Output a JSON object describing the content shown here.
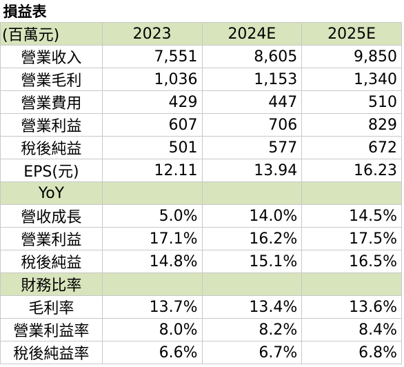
{
  "title": "損益表",
  "header": {
    "unit_label": "(百萬元)",
    "years": [
      "2023",
      "2024E",
      "2025E"
    ]
  },
  "income_rows": [
    {
      "label": "營業收入",
      "values": [
        "7,551",
        "8,605",
        "9,850"
      ]
    },
    {
      "label": "營業毛利",
      "values": [
        "1,036",
        "1,153",
        "1,340"
      ]
    },
    {
      "label": "營業費用",
      "values": [
        "429",
        "447",
        "510"
      ]
    },
    {
      "label": "營業利益",
      "values": [
        "607",
        "706",
        "829"
      ]
    },
    {
      "label": "稅後純益",
      "values": [
        "501",
        "577",
        "672"
      ]
    },
    {
      "label": "EPS(元)",
      "values": [
        "12.11",
        "13.94",
        "16.23"
      ]
    }
  ],
  "yoy_section": {
    "label": "YoY",
    "rows": [
      {
        "label": "營收成長",
        "values": [
          "5.0%",
          "14.0%",
          "14.5%"
        ]
      },
      {
        "label": "營業利益",
        "values": [
          "17.1%",
          "16.2%",
          "17.5%"
        ]
      },
      {
        "label": "稅後純益",
        "values": [
          "14.8%",
          "15.1%",
          "16.5%"
        ]
      }
    ]
  },
  "ratio_section": {
    "label": "財務比率",
    "rows": [
      {
        "label": "毛利率",
        "values": [
          "13.7%",
          "13.4%",
          "13.6%"
        ]
      },
      {
        "label": "營業利益率",
        "values": [
          "8.0%",
          "8.2%",
          "8.4%"
        ]
      },
      {
        "label": "稅後純益率",
        "values": [
          "6.6%",
          "6.7%",
          "6.8%"
        ]
      }
    ]
  },
  "colors": {
    "header_fill": "#d8e4bc",
    "grid_line": "#c8c8c8"
  }
}
